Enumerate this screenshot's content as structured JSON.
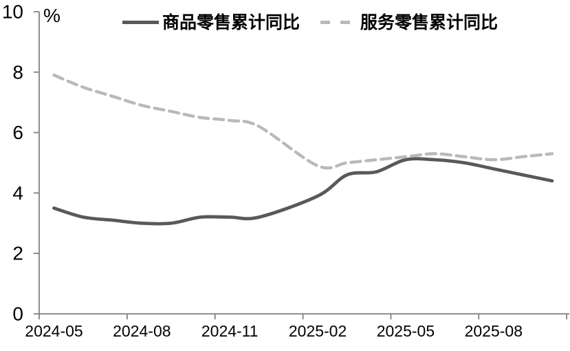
{
  "chart_data": {
    "type": "line",
    "title": "",
    "unit_label": "%",
    "categories": [
      "2024-05",
      "2024-06",
      "2024-07",
      "2024-08",
      "2024-09",
      "2024-10",
      "2024-11",
      "2024-12",
      "2025-01",
      "2025-02",
      "2025-03",
      "2025-04",
      "2025-05",
      "2025-06",
      "2025-07",
      "2025-08",
      "2025-09",
      "2025-10"
    ],
    "x_tick_labels": [
      "2024-05",
      "2024-08",
      "2024-11",
      "2025-02",
      "2025-05",
      "2025-08"
    ],
    "y_ticks": [
      0,
      2,
      4,
      6,
      8,
      10
    ],
    "ylim": [
      0,
      10
    ],
    "grid": false,
    "legend_position": "top",
    "series": [
      {
        "name": "商品零售累计同比",
        "line_style": "solid",
        "color": "#595959",
        "values": [
          3.5,
          3.2,
          3.1,
          3.0,
          3.0,
          3.2,
          3.2,
          3.2,
          null,
          3.9,
          4.6,
          4.7,
          5.1,
          5.1,
          5.0,
          4.8,
          4.6,
          4.4
        ]
      },
      {
        "name": "服务零售累计同比",
        "line_style": "dashed",
        "color": "#b9b9b9",
        "values": [
          7.9,
          7.5,
          7.2,
          6.9,
          6.7,
          6.5,
          6.4,
          6.2,
          null,
          4.9,
          5.0,
          5.1,
          5.2,
          5.3,
          5.2,
          5.1,
          5.2,
          5.3
        ]
      }
    ],
    "colors": {
      "axis": "#808080",
      "tick_text": "#000000",
      "background": "#ffffff"
    }
  }
}
